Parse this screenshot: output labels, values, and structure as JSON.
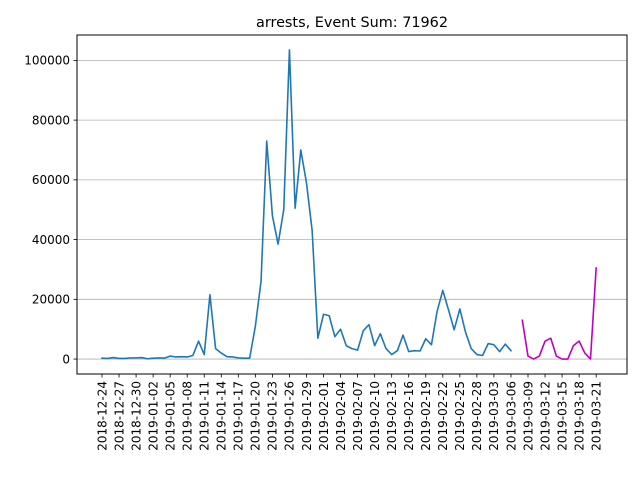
{
  "chart_data": {
    "type": "line",
    "title": "arrests, Event Sum: 71962",
    "xlabel": "",
    "ylabel": "",
    "grid": "y",
    "x_ticks": [
      "2018-12-24",
      "2018-12-27",
      "2018-12-30",
      "2019-01-02",
      "2019-01-05",
      "2019-01-08",
      "2019-01-11",
      "2019-01-14",
      "2019-01-17",
      "2019-01-20",
      "2019-01-23",
      "2019-01-26",
      "2019-01-29",
      "2019-02-01",
      "2019-02-04",
      "2019-02-07",
      "2019-02-10",
      "2019-02-13",
      "2019-02-16",
      "2019-02-19",
      "2019-02-22",
      "2019-02-25",
      "2019-02-28",
      "2019-03-03",
      "2019-03-06",
      "2019-03-09",
      "2019-03-12",
      "2019-03-15",
      "2019-03-18",
      "2019-03-21"
    ],
    "y_ticks": [
      0,
      20000,
      40000,
      60000,
      80000,
      100000
    ],
    "y_tick_labels": [
      "0",
      "20000",
      "40000",
      "60000",
      "80000",
      "100000"
    ],
    "ylim": [
      -5000,
      108500
    ],
    "x_start": "2018-12-24",
    "series": [
      {
        "color": "#1f77b4",
        "x": [
          "2018-12-24",
          "2018-12-25",
          "2018-12-26",
          "2018-12-27",
          "2018-12-28",
          "2018-12-29",
          "2018-12-30",
          "2018-12-31",
          "2019-01-01",
          "2019-01-02",
          "2019-01-03",
          "2019-01-04",
          "2019-01-05",
          "2019-01-06",
          "2019-01-07",
          "2019-01-08",
          "2019-01-09",
          "2019-01-10",
          "2019-01-11",
          "2019-01-12",
          "2019-01-13",
          "2019-01-14",
          "2019-01-15",
          "2019-01-16",
          "2019-01-17",
          "2019-01-18",
          "2019-01-19",
          "2019-01-20",
          "2019-01-21",
          "2019-01-22",
          "2019-01-23",
          "2019-01-24",
          "2019-01-25",
          "2019-01-26",
          "2019-01-27",
          "2019-01-28",
          "2019-01-29",
          "2019-01-30",
          "2019-01-31",
          "2019-02-01",
          "2019-02-02",
          "2019-02-03",
          "2019-02-04",
          "2019-02-05",
          "2019-02-06",
          "2019-02-07",
          "2019-02-08",
          "2019-02-09",
          "2019-02-10",
          "2019-02-11",
          "2019-02-12",
          "2019-02-13",
          "2019-02-14",
          "2019-02-15",
          "2019-02-16",
          "2019-02-17",
          "2019-02-18",
          "2019-02-19",
          "2019-02-20",
          "2019-02-21",
          "2019-02-22",
          "2019-02-23",
          "2019-02-24",
          "2019-02-25",
          "2019-02-26",
          "2019-02-27",
          "2019-02-28",
          "2019-03-01",
          "2019-03-02",
          "2019-03-03",
          "2019-03-04",
          "2019-03-05",
          "2019-03-06",
          "2019-03-07"
        ],
        "values": [
          300,
          200,
          500,
          200,
          200,
          400,
          400,
          500,
          100,
          300,
          400,
          300,
          1000,
          700,
          800,
          700,
          1200,
          6000,
          1500,
          21500,
          3500,
          2000,
          800,
          700,
          400,
          300,
          300,
          11000,
          26000,
          73000,
          48000,
          38500,
          50000,
          103500,
          50500,
          70000,
          59000,
          43000,
          7000,
          15000,
          14500,
          7500,
          10000,
          4500,
          3500,
          3000,
          9500,
          11500,
          4500,
          8500,
          3500,
          1500,
          2800,
          8000,
          2500,
          2800,
          2700,
          6800,
          4800,
          16000,
          23000,
          16500,
          9800,
          16800,
          9000,
          3500,
          1500,
          1200,
          5200,
          4800,
          2500,
          5000,
          2800,
          null
        ]
      },
      {
        "color": "#bf00bf",
        "x": [
          "2019-03-08",
          "2019-03-09",
          "2019-03-10",
          "2019-03-11",
          "2019-03-12",
          "2019-03-13",
          "2019-03-14",
          "2019-03-15",
          "2019-03-16",
          "2019-03-17",
          "2019-03-18",
          "2019-03-19",
          "2019-03-20",
          "2019-03-21"
        ],
        "values": [
          13000,
          1000,
          0,
          1000,
          6000,
          7000,
          1000,
          0,
          0,
          4500,
          6000,
          2000,
          0,
          30500
        ]
      }
    ]
  }
}
